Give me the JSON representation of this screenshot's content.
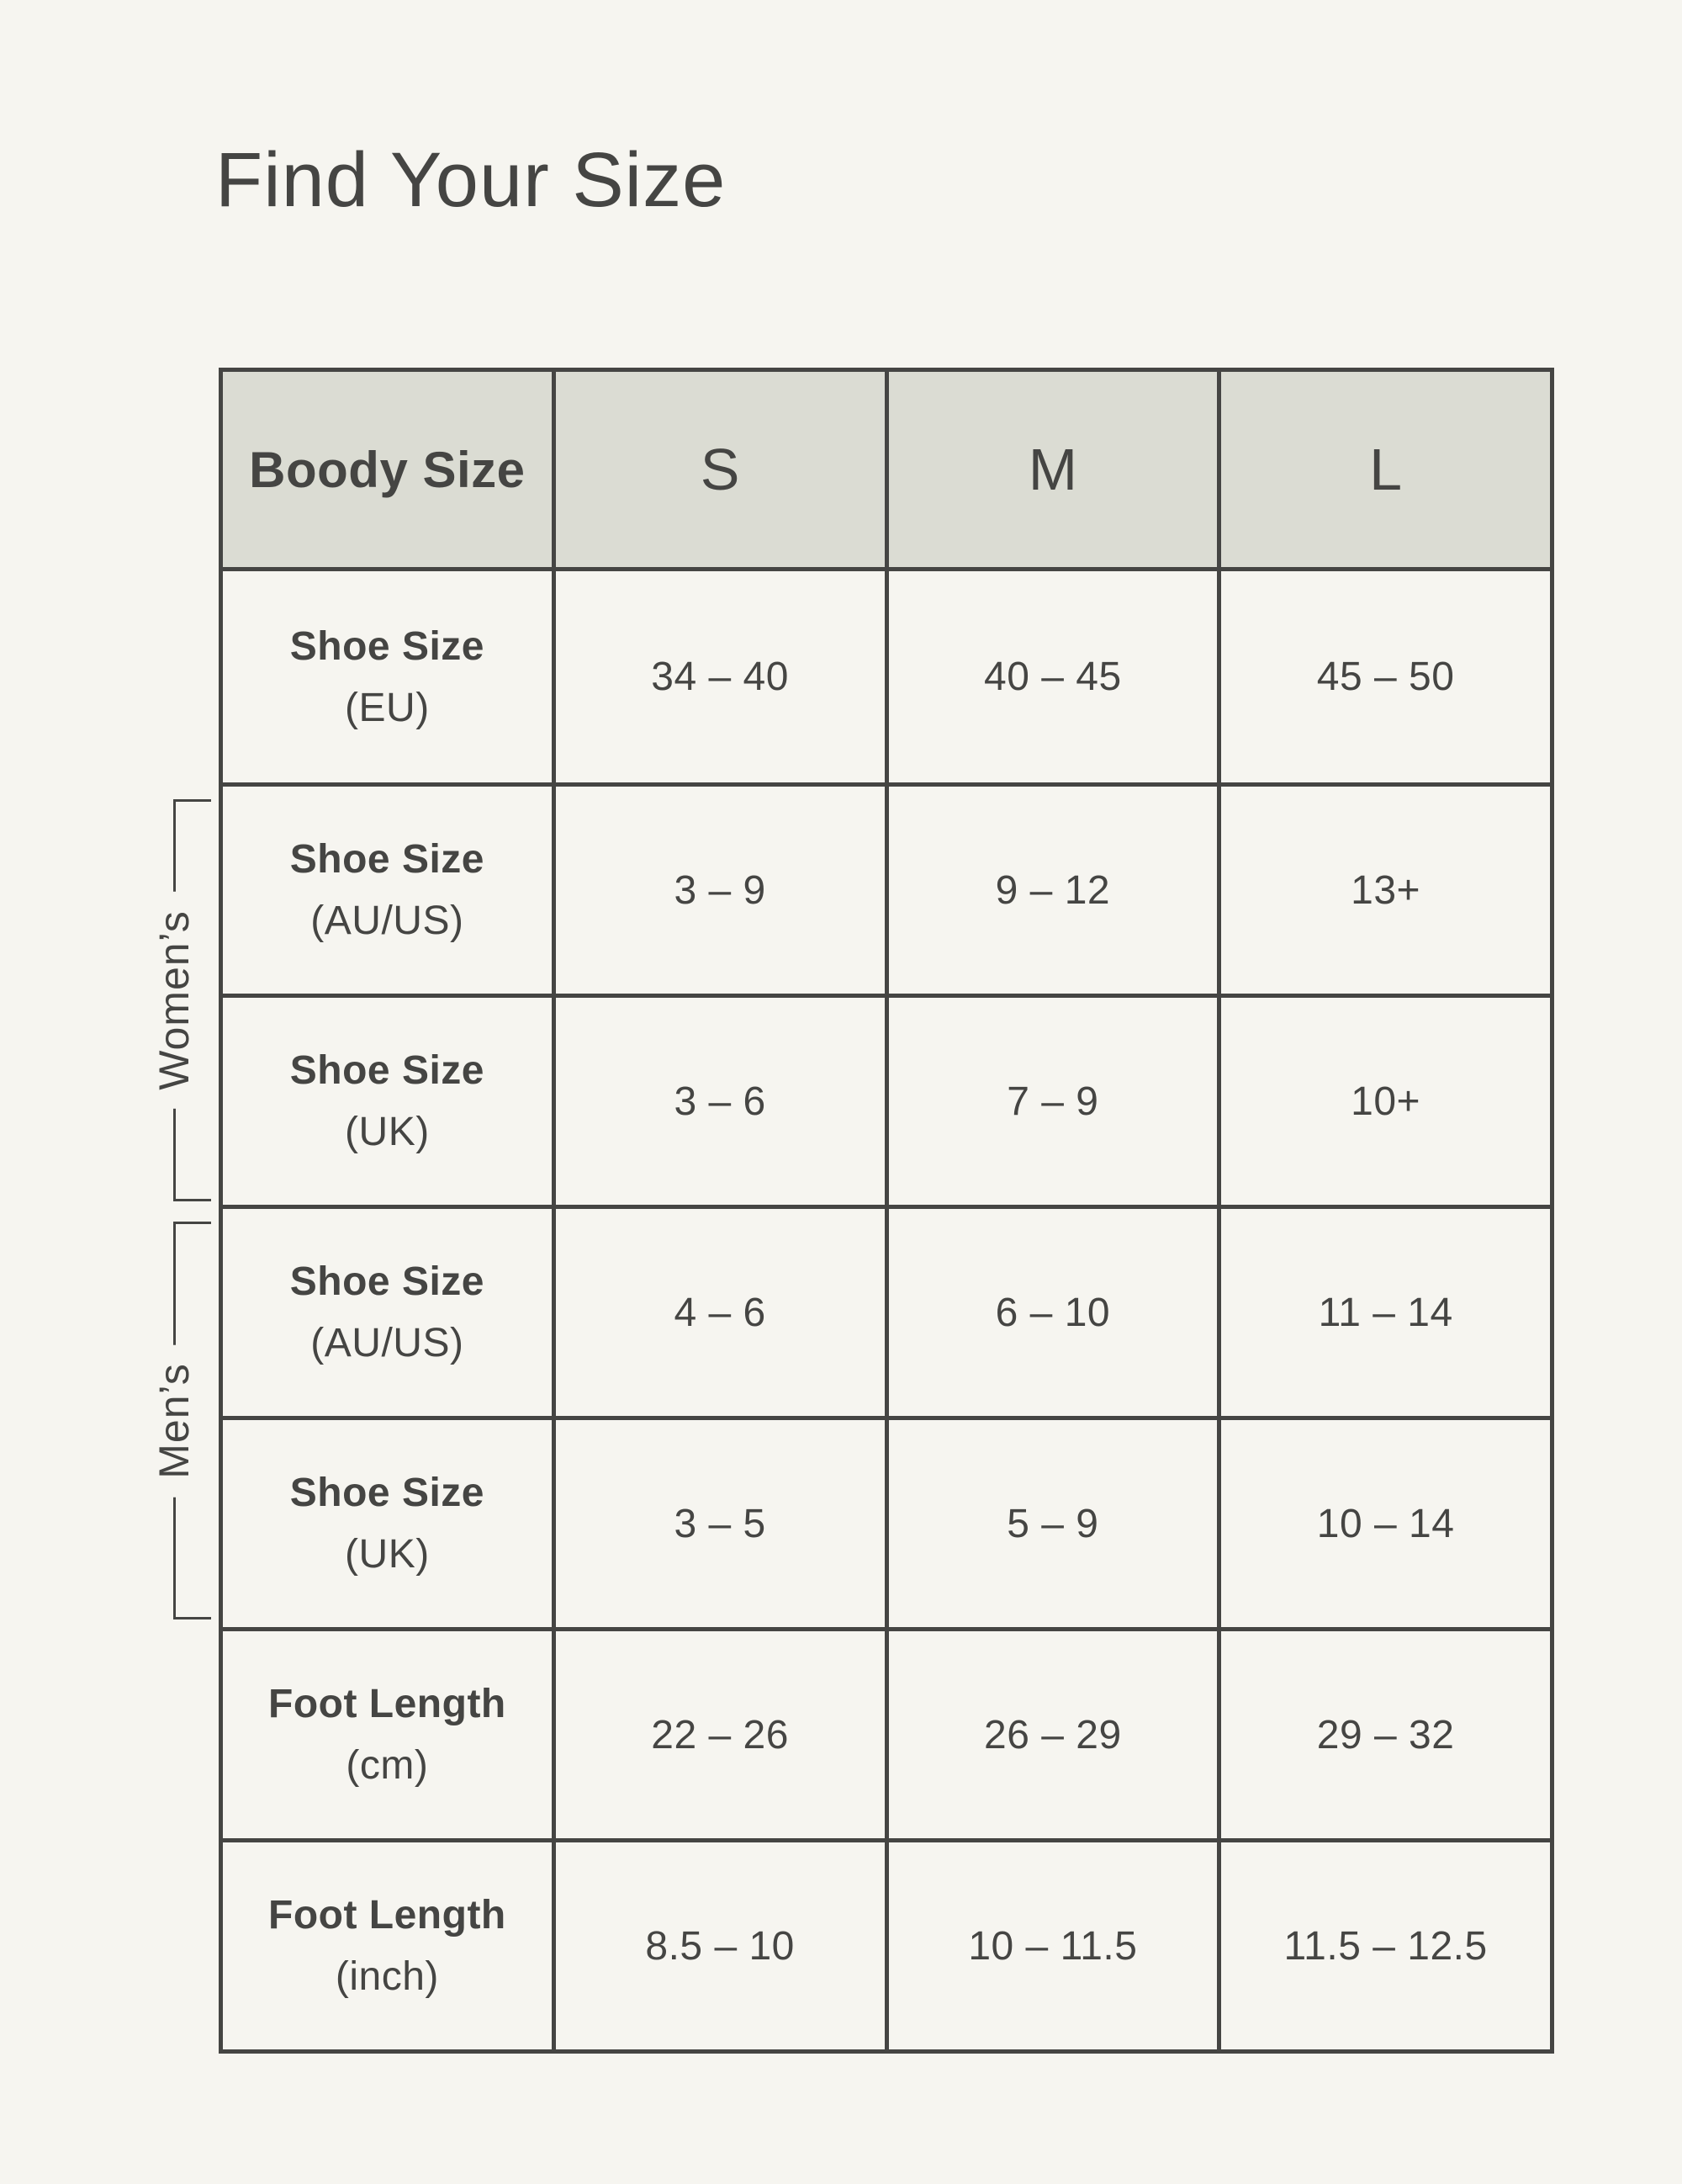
{
  "page": {
    "title": "Find Your Size",
    "background_color": "#F6F5F0",
    "header_background_color": "#DBDCD3",
    "text_color": "#454543",
    "border_color": "#454543"
  },
  "groups": {
    "womens": "Women’s",
    "mens": "Men’s"
  },
  "table": {
    "header": {
      "label": "Boody Size",
      "sizes": [
        "S",
        "M",
        "L"
      ]
    },
    "rows": [
      {
        "label": "Shoe Size",
        "unit": "(EU)",
        "group": "",
        "values": [
          "34 – 40",
          "40 – 45",
          "45 – 50"
        ]
      },
      {
        "label": "Shoe Size",
        "unit": "(AU/US)",
        "group": "womens",
        "values": [
          "3 – 9",
          "9 – 12",
          "13+"
        ]
      },
      {
        "label": "Shoe Size",
        "unit": "(UK)",
        "group": "womens",
        "values": [
          "3 – 6",
          "7 – 9",
          "10+"
        ]
      },
      {
        "label": "Shoe Size",
        "unit": "(AU/US)",
        "group": "mens",
        "values": [
          "4 – 6",
          "6 – 10",
          "11 – 14"
        ]
      },
      {
        "label": "Shoe Size",
        "unit": "(UK)",
        "group": "mens",
        "values": [
          "3 – 5",
          "5 – 9",
          "10 – 14"
        ]
      },
      {
        "label": "Foot Length",
        "unit": "(cm)",
        "group": "",
        "values": [
          "22 – 26",
          "26 – 29",
          "29 – 32"
        ]
      },
      {
        "label": "Foot Length",
        "unit": "(inch)",
        "group": "",
        "values": [
          "8.5 – 10",
          "10 – 11.5",
          "11.5 – 12.5"
        ]
      }
    ]
  },
  "chart_data": {
    "type": "table",
    "title": "Find Your Size",
    "columns": [
      "Boody Size",
      "S",
      "M",
      "L"
    ],
    "rows": [
      [
        "Shoe Size (EU)",
        "34 – 40",
        "40 – 45",
        "45 – 50"
      ],
      [
        "Shoe Size (AU/US)",
        "3 – 9",
        "9 – 12",
        "13+"
      ],
      [
        "Shoe Size (UK)",
        "3 – 6",
        "7 – 9",
        "10+"
      ],
      [
        "Shoe Size (AU/US)",
        "4 – 6",
        "6 – 10",
        "11 – 14"
      ],
      [
        "Shoe Size (UK)",
        "3 – 5",
        "5 – 9",
        "10 – 14"
      ],
      [
        "Foot Length (cm)",
        "22 – 26",
        "26 – 29",
        "29 – 32"
      ],
      [
        "Foot Length (inch)",
        "8.5 – 10",
        "10 – 11.5",
        "11.5 – 12.5"
      ]
    ],
    "row_groups": [
      {
        "label": "Women’s",
        "row_indices": [
          1,
          2
        ]
      },
      {
        "label": "Men’s",
        "row_indices": [
          3,
          4
        ]
      }
    ],
    "layout_hints": {
      "header_shaded": true,
      "grid": "all-borders",
      "group_brackets_left": true
    }
  }
}
